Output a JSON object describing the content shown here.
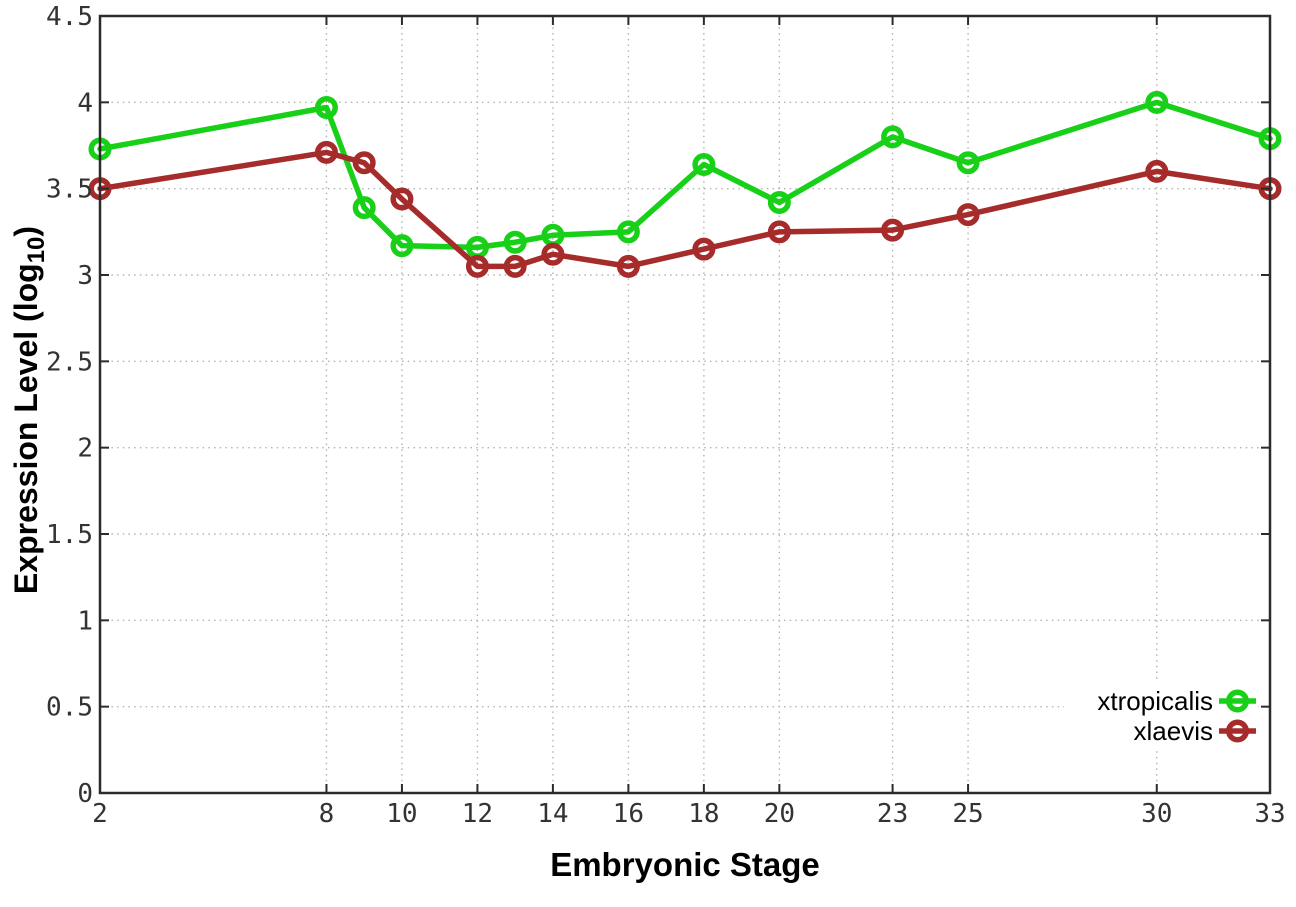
{
  "chart_data": {
    "type": "line",
    "title": "",
    "xlabel": "Embryonic Stage",
    "ylabel": "Expression Level (log10)",
    "ylabel_parts": {
      "prefix": "Expression Level (log",
      "sub": "10",
      "suffix": ")"
    },
    "x": [
      2,
      8,
      9,
      10,
      12,
      13,
      14,
      16,
      18,
      20,
      23,
      25,
      30,
      33
    ],
    "series": [
      {
        "name": "xtropicalis",
        "color": "#17d017",
        "values": [
          3.73,
          3.97,
          3.39,
          3.17,
          3.16,
          3.19,
          3.23,
          3.25,
          3.64,
          3.42,
          3.8,
          3.65,
          4.0,
          3.79
        ]
      },
      {
        "name": "xlaevis",
        "color": "#a62b2b",
        "values": [
          3.5,
          3.71,
          3.65,
          3.44,
          3.05,
          3.05,
          3.12,
          3.05,
          3.15,
          3.25,
          3.26,
          3.35,
          3.6,
          3.5
        ]
      }
    ],
    "xticks": [
      "2",
      "8",
      "10",
      "12",
      "14",
      "16",
      "18",
      "20",
      "23",
      "25",
      "30",
      "33"
    ],
    "yticks": [
      "0",
      "0.5",
      "1",
      "1.5",
      "2",
      "2.5",
      "3",
      "3.5",
      "4",
      "4.5"
    ],
    "xlim": [
      2,
      33
    ],
    "ylim": [
      0,
      4.5
    ],
    "grid": true,
    "legend_position": "bottom-right",
    "marker": "open-circle"
  },
  "colors": {
    "background": "#ffffff",
    "grid": "#b3b3b3",
    "border": "#2b2b2b",
    "tick_label": "#333333",
    "title": "#000000",
    "legend_bg": "#ffffff"
  }
}
